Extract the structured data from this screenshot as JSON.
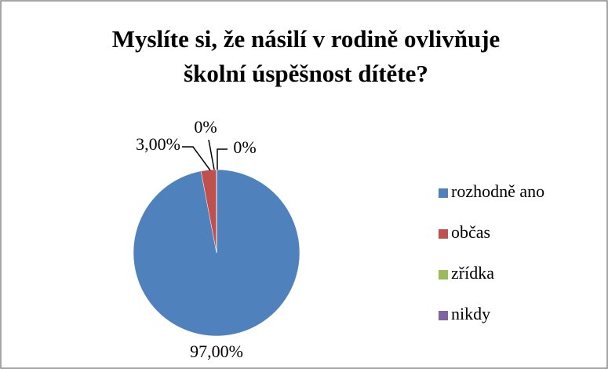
{
  "chart_data": {
    "type": "pie",
    "title": "Myslíte si, že násilí v rodině ovlivňuje školní úspěšnost dítěte?",
    "categories": [
      "rozhodně ano",
      "občas",
      "zřídka",
      "nikdy"
    ],
    "values": [
      97,
      3,
      0,
      0
    ],
    "value_labels": [
      "97,00%",
      "3,00%",
      "0%",
      "0%"
    ],
    "colors": [
      "#4f81bd",
      "#c0504d",
      "#9bbb59",
      "#8064a2"
    ],
    "legend": "right"
  }
}
